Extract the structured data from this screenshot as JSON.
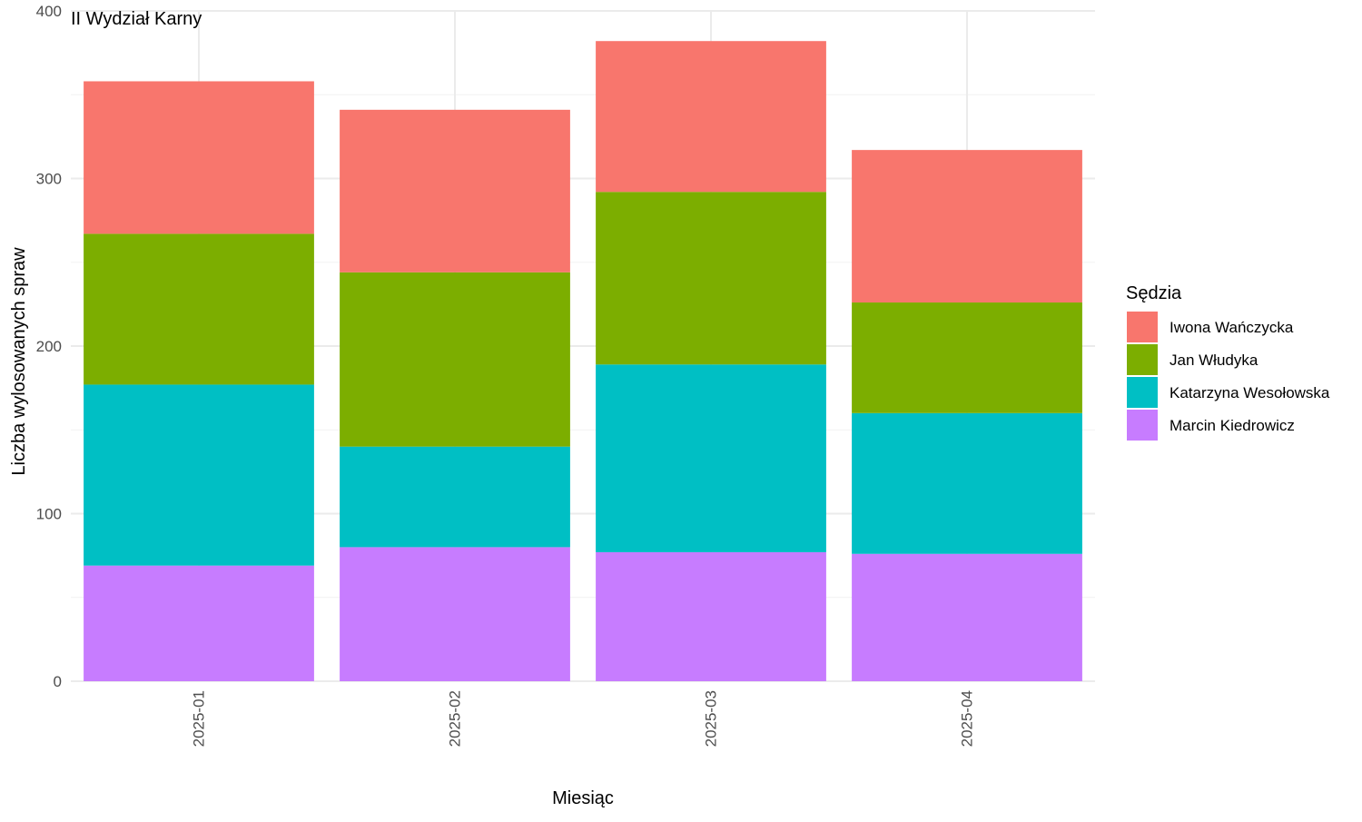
{
  "chart_data": {
    "type": "bar",
    "stacked": true,
    "title": "II Wydział Karny",
    "xlabel": "Miesiąc",
    "ylabel": "Liczba wylosowanych spraw",
    "ylim": [
      0,
      400
    ],
    "yticks": [
      0,
      100,
      200,
      300,
      400
    ],
    "grid": true,
    "legend_title": "Sędzia",
    "legend_position": "right",
    "categories": [
      "2025-01",
      "2025-02",
      "2025-03",
      "2025-04"
    ],
    "series": [
      {
        "name": "Iwona Wańczycka",
        "color": "#F8766D",
        "values": [
          91,
          97,
          90,
          91
        ]
      },
      {
        "name": "Jan Włudyka",
        "color": "#7CAE00",
        "values": [
          90,
          104,
          103,
          66
        ]
      },
      {
        "name": "Katarzyna Wesołowska",
        "color": "#00BFC4",
        "values": [
          108,
          60,
          112,
          84
        ]
      },
      {
        "name": "Marcin Kiedrowicz",
        "color": "#C77CFF",
        "values": [
          69,
          80,
          77,
          76
        ]
      }
    ]
  }
}
